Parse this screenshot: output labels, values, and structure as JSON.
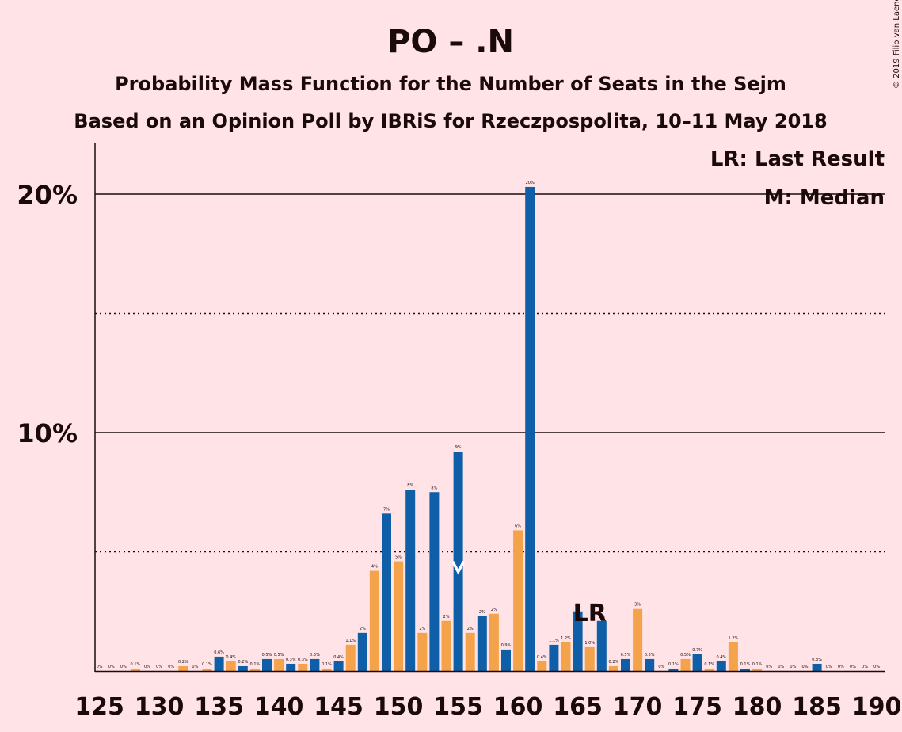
{
  "copyright": "© 2019 Filip van Laenen",
  "chart_data": {
    "type": "bar",
    "title": "PO – .N",
    "subtitle": "Probability Mass Function for the Number of Seats in the Sejm",
    "subtitle2": "Based on an Opinion Poll by IBRiS for Rzeczpospolita, 10–11 May 2018",
    "legend": [
      "LR: Last Result",
      "M: Median"
    ],
    "legend_position": "top-right",
    "y_ticks": [
      {
        "value": 10,
        "label": "10%"
      },
      {
        "value": 20,
        "label": "20%"
      }
    ],
    "y_minor_ticks": [
      5,
      15
    ],
    "ylim": [
      0,
      22
    ],
    "xlim": [
      125,
      190
    ],
    "x_ticks": [
      125,
      130,
      135,
      140,
      145,
      150,
      155,
      160,
      165,
      170,
      175,
      180,
      185,
      190
    ],
    "last_result": {
      "seat": 166,
      "label": "LR"
    },
    "median": 155,
    "colors": {
      "odd": "#0E5FA8",
      "even": "#F5A34A",
      "background": "#FFE3E6"
    },
    "bars": [
      {
        "seat": 125,
        "value": 0,
        "label": "0%"
      },
      {
        "seat": 126,
        "value": 0,
        "label": "0%"
      },
      {
        "seat": 127,
        "value": 0,
        "label": "0%"
      },
      {
        "seat": 128,
        "value": 0.1,
        "label": "0.1%"
      },
      {
        "seat": 129,
        "value": 0,
        "label": "0%"
      },
      {
        "seat": 130,
        "value": 0,
        "label": "0%"
      },
      {
        "seat": 131,
        "value": 0,
        "label": "0%"
      },
      {
        "seat": 132,
        "value": 0.2,
        "label": "0.2%"
      },
      {
        "seat": 133,
        "value": 0,
        "label": "0%"
      },
      {
        "seat": 134,
        "value": 0.1,
        "label": "0.1%"
      },
      {
        "seat": 135,
        "value": 0.6,
        "label": "0.6%"
      },
      {
        "seat": 136,
        "value": 0.4,
        "label": "0.4%"
      },
      {
        "seat": 137,
        "value": 0.2,
        "label": "0.2%"
      },
      {
        "seat": 138,
        "value": 0.1,
        "label": "0.1%"
      },
      {
        "seat": 139,
        "value": 0.5,
        "label": "0.5%"
      },
      {
        "seat": 140,
        "value": 0.5,
        "label": "0.5%"
      },
      {
        "seat": 141,
        "value": 0.3,
        "label": "0.3%"
      },
      {
        "seat": 142,
        "value": 0.3,
        "label": "0.3%"
      },
      {
        "seat": 143,
        "value": 0.5,
        "label": "0.5%"
      },
      {
        "seat": 144,
        "value": 0.1,
        "label": "0.1%"
      },
      {
        "seat": 145,
        "value": 0.4,
        "label": "0.4%"
      },
      {
        "seat": 146,
        "value": 1.1,
        "label": "1.1%"
      },
      {
        "seat": 147,
        "value": 1.6,
        "label": "2%"
      },
      {
        "seat": 148,
        "value": 4.2,
        "label": "4%"
      },
      {
        "seat": 149,
        "value": 6.6,
        "label": "7%"
      },
      {
        "seat": 150,
        "value": 4.6,
        "label": "5%"
      },
      {
        "seat": 151,
        "value": 7.6,
        "label": "8%"
      },
      {
        "seat": 152,
        "value": 1.6,
        "label": "2%"
      },
      {
        "seat": 153,
        "value": 7.5,
        "label": "8%"
      },
      {
        "seat": 154,
        "value": 2.1,
        "label": "2%"
      },
      {
        "seat": 155,
        "value": 9.2,
        "label": "9%"
      },
      {
        "seat": 156,
        "value": 1.6,
        "label": "2%"
      },
      {
        "seat": 157,
        "value": 2.3,
        "label": "2%"
      },
      {
        "seat": 158,
        "value": 2.4,
        "label": "2%"
      },
      {
        "seat": 159,
        "value": 0.9,
        "label": "0.9%"
      },
      {
        "seat": 160,
        "value": 5.9,
        "label": "6%"
      },
      {
        "seat": 161,
        "value": 20.3,
        "label": "20%"
      },
      {
        "seat": 162,
        "value": 0.4,
        "label": "0.4%"
      },
      {
        "seat": 163,
        "value": 1.1,
        "label": "1.1%"
      },
      {
        "seat": 164,
        "value": 1.2,
        "label": "1.2%"
      },
      {
        "seat": 165,
        "value": 2.5,
        "label": "3%"
      },
      {
        "seat": 166,
        "value": 1.0,
        "label": "1.0%"
      },
      {
        "seat": 167,
        "value": 2.1,
        "label": "2%"
      },
      {
        "seat": 168,
        "value": 0.2,
        "label": "0.2%"
      },
      {
        "seat": 169,
        "value": 0.5,
        "label": "0.5%"
      },
      {
        "seat": 170,
        "value": 2.6,
        "label": "3%"
      },
      {
        "seat": 171,
        "value": 0.5,
        "label": "0.5%"
      },
      {
        "seat": 172,
        "value": 0,
        "label": "0%"
      },
      {
        "seat": 173,
        "value": 0.1,
        "label": "0.1%"
      },
      {
        "seat": 174,
        "value": 0.5,
        "label": "0.5%"
      },
      {
        "seat": 175,
        "value": 0.7,
        "label": "0.7%"
      },
      {
        "seat": 176,
        "value": 0.1,
        "label": "0.1%"
      },
      {
        "seat": 177,
        "value": 0.4,
        "label": "0.4%"
      },
      {
        "seat": 178,
        "value": 1.2,
        "label": "1.2%"
      },
      {
        "seat": 179,
        "value": 0.1,
        "label": "0.1%"
      },
      {
        "seat": 180,
        "value": 0.1,
        "label": "0.1%"
      },
      {
        "seat": 181,
        "value": 0,
        "label": "0%"
      },
      {
        "seat": 182,
        "value": 0,
        "label": "0%"
      },
      {
        "seat": 183,
        "value": 0,
        "label": "0%"
      },
      {
        "seat": 184,
        "value": 0,
        "label": "0%"
      },
      {
        "seat": 185,
        "value": 0.3,
        "label": "0.3%"
      },
      {
        "seat": 186,
        "value": 0,
        "label": "0%"
      },
      {
        "seat": 187,
        "value": 0,
        "label": "0%"
      },
      {
        "seat": 188,
        "value": 0,
        "label": "0%"
      },
      {
        "seat": 189,
        "value": 0,
        "label": "0%"
      },
      {
        "seat": 190,
        "value": 0,
        "label": "0%"
      }
    ]
  }
}
